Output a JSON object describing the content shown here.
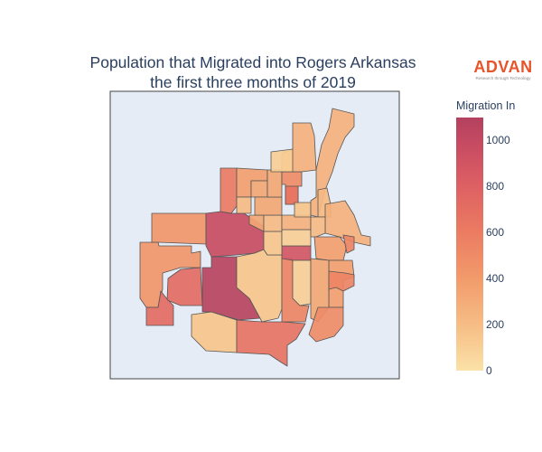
{
  "title_line1": "Population that Migrated into Rogers Arkansas",
  "title_line2": "the first three months of 2019",
  "logo": {
    "name": "ADVAN",
    "tagline": "Research through Technology"
  },
  "legend": {
    "title": "Migration In",
    "min": 0,
    "max": 1100,
    "ticks": [
      "0",
      "200",
      "400",
      "600",
      "800",
      "1000"
    ],
    "colors": [
      "#fbe2a8",
      "#f6bd85",
      "#f29b6b",
      "#eb7b62",
      "#dc5f63",
      "#c64a62",
      "#b3415f"
    ]
  },
  "map": {
    "background": "#e5ecf6",
    "border_color": "#555555",
    "regions": [
      {
        "id": "r1",
        "value": 400
      },
      {
        "id": "r2",
        "value": 1050
      },
      {
        "id": "r3",
        "value": 900
      },
      {
        "id": "r4",
        "value": 650
      },
      {
        "id": "r5",
        "value": 500
      },
      {
        "id": "r6",
        "value": 500
      },
      {
        "id": "r7",
        "value": 150
      },
      {
        "id": "r8",
        "value": 550
      },
      {
        "id": "r9",
        "value": 350
      },
      {
        "id": "r10",
        "value": 300
      },
      {
        "id": "r11",
        "value": 450
      },
      {
        "id": "r12",
        "value": 250
      },
      {
        "id": "r13",
        "value": 600
      },
      {
        "id": "r14",
        "value": 250
      },
      {
        "id": "r15",
        "value": 100
      },
      {
        "id": "r16",
        "value": 300
      },
      {
        "id": "r17",
        "value": 800
      },
      {
        "id": "r18",
        "value": 200
      },
      {
        "id": "r19",
        "value": 300
      },
      {
        "id": "r20",
        "value": 150
      },
      {
        "id": "r21",
        "value": 100
      },
      {
        "id": "r22",
        "value": 250
      },
      {
        "id": "r23",
        "value": 250
      },
      {
        "id": "r24",
        "value": 100
      },
      {
        "id": "r25",
        "value": 300
      },
      {
        "id": "r26",
        "value": 350
      },
      {
        "id": "r27",
        "value": 600
      },
      {
        "id": "r28",
        "value": 450
      },
      {
        "id": "r29",
        "value": 150
      },
      {
        "id": "r30",
        "value": 150
      },
      {
        "id": "r31",
        "value": 500
      },
      {
        "id": "r32",
        "value": 400
      },
      {
        "id": "r33",
        "value": 350
      },
      {
        "id": "r34",
        "value": 200
      },
      {
        "id": "r35",
        "value": 650
      },
      {
        "id": "r36",
        "value": 300
      },
      {
        "id": "r37",
        "value": 200
      },
      {
        "id": "r38",
        "value": 200
      }
    ]
  }
}
